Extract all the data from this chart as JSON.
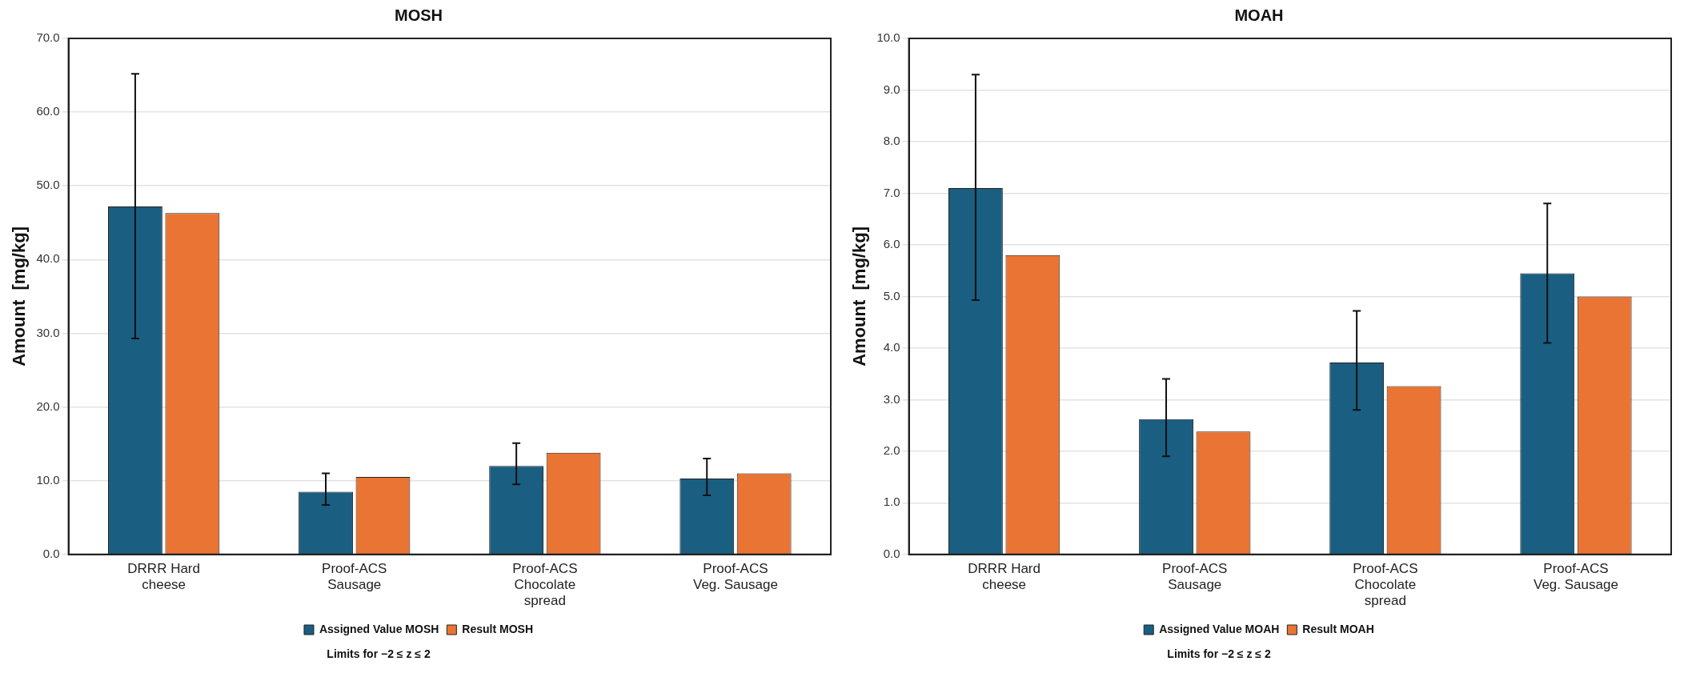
{
  "chart_data": [
    {
      "type": "bar",
      "title": "MOSH",
      "ylabel": "Amount  [mg/kg]",
      "categories": [
        "DRRR Hard cheese",
        "Proof-ACS Sausage",
        "Proof-ACS Chocolate spread",
        "Proof-ACS Veg. Sausage"
      ],
      "series": [
        {
          "name": "Assigned Value MOSH",
          "color": "#1a5e82",
          "values": [
            47.2,
            8.5,
            12.0,
            10.3
          ],
          "errors": [
            [
              29.3,
              65.2
            ],
            [
              6.7,
              11.0
            ],
            [
              9.5,
              15.1
            ],
            [
              8.0,
              13.0
            ]
          ]
        },
        {
          "name": "Result MOSH",
          "color": "#ea7433",
          "values": [
            46.3,
            10.5,
            13.8,
            11.0
          ]
        }
      ],
      "ylim": [
        0,
        70
      ],
      "yticks": [
        {
          "value": 0,
          "label": "0.0"
        },
        {
          "value": 10,
          "label": "10.0"
        },
        {
          "value": 20,
          "label": "20.0"
        },
        {
          "value": 30,
          "label": "30.0"
        },
        {
          "value": 40,
          "label": "40.0"
        },
        {
          "value": 50,
          "label": "50.0"
        },
        {
          "value": 60,
          "label": "60.0"
        },
        {
          "value": 70,
          "label": "70.0"
        }
      ],
      "grid": "y",
      "legend": "bottom",
      "annotations": [
        "Limits for −2 ≤ z ≤ 2"
      ]
    },
    {
      "type": "bar",
      "title": "MOAH",
      "ylabel": "Amount  [mg/kg]",
      "categories": [
        "DRRR Hard cheese",
        "Proof-ACS Sausage",
        "Proof-ACS Chocolate spread",
        "Proof-ACS Veg. Sausage"
      ],
      "series": [
        {
          "name": "Assigned Value MOAH",
          "color": "#1a5e82",
          "values": [
            7.1,
            2.62,
            3.72,
            5.45
          ],
          "errors": [
            [
              4.93,
              9.3
            ],
            [
              1.9,
              3.4
            ],
            [
              2.8,
              4.72
            ],
            [
              4.1,
              6.8
            ]
          ]
        },
        {
          "name": "Result MOAH",
          "color": "#ea7433",
          "values": [
            5.8,
            2.38,
            3.26,
            5.0
          ]
        }
      ],
      "ylim": [
        0,
        10
      ],
      "yticks": [
        {
          "value": 0,
          "label": "0.0"
        },
        {
          "value": 1,
          "label": "1.0"
        },
        {
          "value": 2,
          "label": "2.0"
        },
        {
          "value": 3,
          "label": "3.0"
        },
        {
          "value": 4,
          "label": "4.0"
        },
        {
          "value": 5,
          "label": "5.0"
        },
        {
          "value": 6,
          "label": "6.0"
        },
        {
          "value": 7,
          "label": "7.0"
        },
        {
          "value": 8,
          "label": "8.0"
        },
        {
          "value": 9,
          "label": "9.0"
        },
        {
          "value": 10,
          "label": "10.0"
        }
      ],
      "grid": "y",
      "legend": "bottom",
      "annotations": [
        "Limits for −2 ≤ z ≤ 2"
      ]
    }
  ]
}
